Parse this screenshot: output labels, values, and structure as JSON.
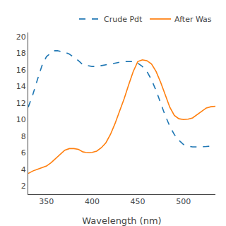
{
  "chart_data": {
    "type": "line",
    "xlabel": "Wavelength (nm)",
    "xlim": [
      330,
      535
    ],
    "ylim": [
      1,
      20.5
    ],
    "xticks": [
      350,
      400,
      450,
      500
    ],
    "yticks": [
      2,
      4,
      6,
      8,
      10,
      12,
      14,
      16,
      18,
      20
    ],
    "grid": false,
    "legend": "upper right",
    "series": [
      {
        "name": "Crude Pdt",
        "line_style": "dashed",
        "x": [
          330,
          335,
          340,
          345,
          350,
          355,
          358,
          362,
          366,
          370,
          375,
          380,
          385,
          390,
          395,
          400,
          405,
          410,
          415,
          420,
          425,
          430,
          435,
          440,
          445,
          450,
          455,
          460,
          465,
          470,
          475,
          480,
          485,
          490,
          495,
          500,
          505,
          510,
          515,
          520,
          525,
          530,
          535
        ],
        "values": [
          11.5,
          13.0,
          14.8,
          16.5,
          17.6,
          18.0,
          18.3,
          18.3,
          18.2,
          18.1,
          17.9,
          17.5,
          17.1,
          16.6,
          16.5,
          16.4,
          16.4,
          16.5,
          16.6,
          16.7,
          16.8,
          16.9,
          17.0,
          17.0,
          17.0,
          16.8,
          16.4,
          15.8,
          14.8,
          13.5,
          12.0,
          10.5,
          9.2,
          8.2,
          7.5,
          7.0,
          6.8,
          6.7,
          6.7,
          6.7,
          6.75,
          6.8,
          6.9
        ]
      },
      {
        "name": "After Was",
        "line_style": "solid",
        "x": [
          330,
          335,
          340,
          345,
          350,
          355,
          360,
          365,
          370,
          375,
          380,
          385,
          390,
          393,
          397,
          400,
          405,
          410,
          415,
          420,
          425,
          430,
          435,
          440,
          445,
          450,
          455,
          460,
          465,
          470,
          475,
          480,
          485,
          490,
          495,
          500,
          505,
          510,
          515,
          520,
          525,
          530,
          535
        ],
        "values": [
          3.5,
          3.8,
          4.0,
          4.2,
          4.4,
          4.8,
          5.3,
          5.8,
          6.3,
          6.5,
          6.5,
          6.4,
          6.1,
          6.05,
          6.0,
          6.05,
          6.2,
          6.6,
          7.2,
          8.2,
          9.5,
          11.0,
          12.5,
          14.2,
          15.8,
          17.0,
          17.2,
          17.1,
          16.7,
          15.8,
          14.5,
          13.0,
          11.5,
          10.5,
          10.1,
          10.0,
          10.05,
          10.2,
          10.6,
          11.0,
          11.4,
          11.55,
          11.6
        ]
      }
    ]
  }
}
